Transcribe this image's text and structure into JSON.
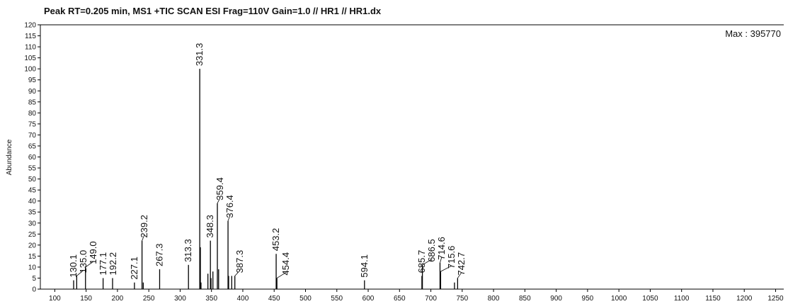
{
  "chart_data": {
    "type": "stick",
    "title": "Peak RT=0.205 min, MS1 +TIC SCAN ESI Frag=110V Gain=1.0 // HR1 // HR1.dx",
    "y_label": "Abundance",
    "annotation": "Max : 395770",
    "color": "#000000",
    "x": [
      130.1,
      135.0,
      149.0,
      177.1,
      192.2,
      227.1,
      239.2,
      241.2,
      267.3,
      313.3,
      331.3,
      332.3,
      333.3,
      344.3,
      348.3,
      349.3,
      352.3,
      359.4,
      361.4,
      376.4,
      377.4,
      382.3,
      387.3,
      453.2,
      454.4,
      594.1,
      685.7,
      686.5,
      714.6,
      715.6,
      737.7,
      742.7
    ],
    "values": [
      4,
      6,
      10,
      5,
      5,
      3,
      22,
      3,
      9,
      11,
      100,
      19,
      3,
      7,
      22,
      5,
      8,
      39,
      9,
      31,
      6,
      6,
      6,
      16,
      5,
      4,
      6,
      11,
      12,
      8,
      3,
      5
    ],
    "labels": [
      "130.1",
      "135.0",
      "149.0",
      "177.1",
      "192.2",
      "227.1",
      "239.2",
      null,
      "267.3",
      "313.3",
      "331.3",
      null,
      null,
      null,
      "348.3",
      null,
      null,
      "359.4",
      null,
      "376.4",
      null,
      null,
      "387.3",
      "453.2",
      "454.4",
      "594.1",
      "685.7",
      "686.5",
      "714.6",
      "715.6",
      null,
      "742.7"
    ],
    "xlim": [
      77,
      1263
    ],
    "xticks": [
      100,
      150,
      200,
      250,
      300,
      350,
      400,
      450,
      500,
      550,
      600,
      650,
      700,
      750,
      800,
      850,
      900,
      950,
      1000,
      1050,
      1100,
      1150,
      1200,
      1250
    ],
    "ylim": [
      0,
      120
    ],
    "yticks": [
      0,
      5,
      10,
      15,
      20,
      25,
      30,
      35,
      40,
      45,
      50,
      55,
      60,
      65,
      70,
      75,
      80,
      85,
      90,
      95,
      100,
      105,
      110,
      115,
      120
    ]
  }
}
